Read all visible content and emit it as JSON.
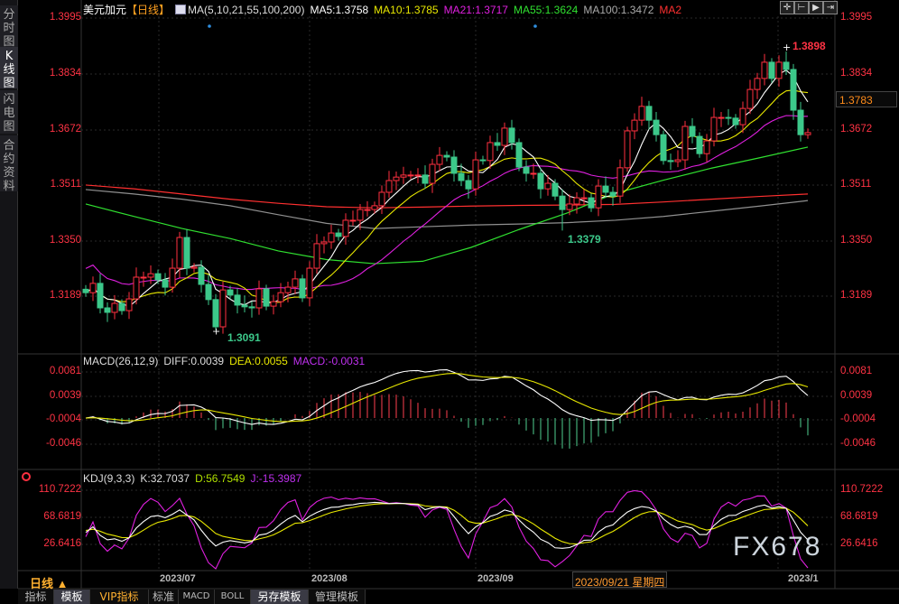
{
  "sidebar": {
    "tabs": [
      {
        "label": "分时图"
      },
      {
        "label": "K线图",
        "active": true
      },
      {
        "label": "闪电图"
      },
      {
        "label": "合约资料"
      }
    ]
  },
  "header": {
    "symbol": "美元加元",
    "period": "【日线】",
    "ma_label": "MA(5,10,21,55,100,200)",
    "ma5": "MA5:1.3758",
    "ma10": "MA10:1.3785",
    "ma21": "MA21:1.3717",
    "ma55": "MA55:1.3624",
    "ma100": "MA100:1.3472",
    "ma200": "MA2"
  },
  "colors": {
    "up": "#ff3040",
    "down": "#3cc88a",
    "ma5": "#ffffff",
    "ma10": "#e8e800",
    "ma21": "#e020e0",
    "ma55": "#30e030",
    "ma100": "#909090",
    "ma200": "#ff3030"
  },
  "price_axis": {
    "ticks": [
      "1.3995",
      "1.3834",
      "1.3672",
      "1.3511",
      "1.3350",
      "1.3189"
    ],
    "current": "1.3783"
  },
  "annotations": {
    "high": "1.3898",
    "low": "1.3091",
    "swing_low": "1.3379"
  },
  "macd": {
    "label": "MACD(26,12,9)",
    "diff": "DIFF:0.0039",
    "dea": "DEA:0.0055",
    "macd": "MACD:-0.0031",
    "ticks": [
      "0.0081",
      "0.0039",
      "-0.0004",
      "-0.0046"
    ]
  },
  "kdj": {
    "label": "KDJ(9,3,3)",
    "k": "K:32.7037",
    "d": "D:56.7549",
    "j": "J:-15.3987",
    "ticks": [
      "110.7222",
      "68.6819",
      "26.6416"
    ]
  },
  "date_axis": {
    "labels": [
      "2023/07",
      "2023/08",
      "2023/09",
      "2023/1"
    ],
    "cursor": "2023/09/21 星期四",
    "period": "日线 ▲"
  },
  "watermark": "FX678",
  "toolbar": [
    "指标",
    "模板",
    "VIP指标",
    "标准",
    "MACD",
    "BOLL",
    "另存模板",
    "管理模板"
  ],
  "tools": [
    "crosshair-icon",
    "zoom-in-icon",
    "play-icon",
    "scroll-right-icon"
  ],
  "chart_data": {
    "type": "candlestick",
    "closes": [
      1.3199,
      1.3226,
      1.3155,
      1.3142,
      1.3168,
      1.3147,
      1.3181,
      1.3244,
      1.3244,
      1.3254,
      1.3236,
      1.3215,
      1.327,
      1.3359,
      1.327,
      1.3273,
      1.3223,
      1.3179,
      1.31,
      1.3207,
      1.3192,
      1.3163,
      1.3158,
      1.3155,
      1.321,
      1.316,
      1.3173,
      1.3199,
      1.3215,
      1.3239,
      1.3184,
      1.327,
      1.3341,
      1.3346,
      1.3372,
      1.3362,
      1.3409,
      1.3409,
      1.344,
      1.344,
      1.3451,
      1.349,
      1.3524,
      1.3534,
      1.354,
      1.354,
      1.354,
      1.3516,
      1.3571,
      1.3597,
      1.3592,
      1.3545,
      1.3524,
      1.35,
      1.3584,
      1.3582,
      1.3634,
      1.3626,
      1.3676,
      1.3634,
      1.3563,
      1.3545,
      1.3545,
      1.35,
      1.3516,
      1.3479,
      1.344,
      1.3456,
      1.3474,
      1.3474,
      1.3445,
      1.3508,
      1.349,
      1.3479,
      1.3561,
      1.3668,
      1.3699,
      1.3739,
      1.3699,
      1.3657,
      1.3582,
      1.3579,
      1.3584,
      1.3681,
      1.3652,
      1.3602,
      1.3639,
      1.3707,
      1.3707,
      1.3705,
      1.3686,
      1.3733,
      1.3788,
      1.382,
      1.3867,
      1.382,
      1.3867,
      1.3846,
      1.3728,
      1.3657,
      1.3663
    ],
    "ma55_sampled": [
      1.3456,
      1.342,
      1.3385,
      1.3356,
      1.332,
      1.3295,
      1.3283,
      1.329,
      1.333,
      1.3382,
      1.343,
      1.3487,
      1.3525,
      1.356,
      1.359,
      1.3621
    ],
    "ma100_sampled": [
      1.3498,
      1.3485,
      1.347,
      1.3451,
      1.3425,
      1.34,
      1.3385,
      1.339,
      1.3395,
      1.3398,
      1.3402,
      1.3409,
      1.342,
      1.3435,
      1.345,
      1.3466
    ],
    "ma200_sampled": [
      1.3511,
      1.35,
      1.3485,
      1.347,
      1.3458,
      1.3448,
      1.3445,
      1.3447,
      1.345,
      1.3452,
      1.3453,
      1.3455,
      1.3462,
      1.347,
      1.3478,
      1.3485
    ],
    "price_range": [
      1.3995,
      1.3189
    ],
    "macd_range": [
      -0.0046,
      0.0081
    ],
    "kdj_range": [
      26.6416,
      110.7222
    ]
  }
}
